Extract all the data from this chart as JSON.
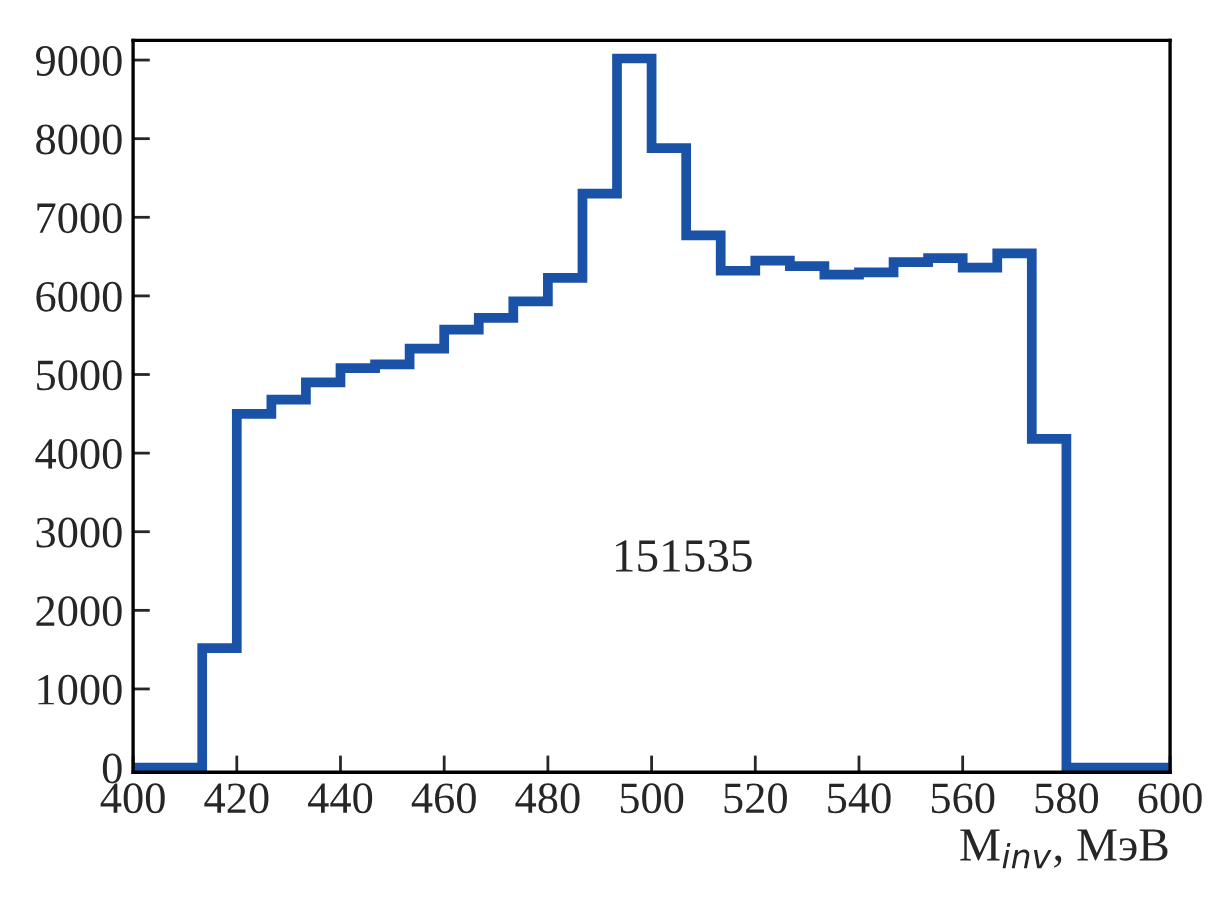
{
  "chart_data": {
    "type": "histogram",
    "xlabel": "M$_{inv}$, МэВ",
    "annotations": [
      "151535"
    ],
    "bins": [
      400,
      406.67,
      413.33,
      420,
      426.67,
      433.33,
      440,
      446.67,
      453.33,
      460,
      466.67,
      473.33,
      480,
      486.67,
      493.33,
      500,
      506.67,
      513.33,
      520,
      526.67,
      533.33,
      540,
      546.67,
      553.33,
      560,
      566.67,
      573.33,
      580,
      586.67,
      593.33,
      600
    ],
    "values": [
      0,
      0,
      1520,
      4500,
      4680,
      4900,
      5080,
      5130,
      5330,
      5570,
      5720,
      5930,
      6230,
      7300,
      9020,
      7880,
      6770,
      6320,
      6450,
      6380,
      6270,
      6300,
      6430,
      6480,
      6360,
      6540,
      4180,
      0,
      0,
      0
    ],
    "color": "#1a52a8",
    "xlim": [
      400,
      600
    ],
    "ylim": [
      -60,
      9250
    ],
    "xticks": [
      400,
      420,
      440,
      460,
      480,
      500,
      520,
      540,
      560,
      580,
      600
    ],
    "yticks": [
      0,
      1000,
      2000,
      3000,
      4000,
      5000,
      6000,
      7000,
      8000,
      9000
    ],
    "grid": false
  }
}
